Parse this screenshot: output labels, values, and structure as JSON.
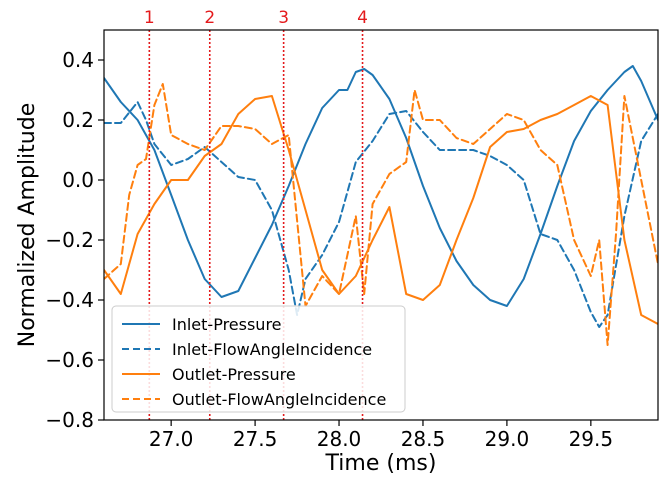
{
  "chart_data": {
    "type": "line",
    "title": "",
    "xlabel": "Time (ms)",
    "ylabel": "Normalized Amplitude",
    "xlim": [
      26.6,
      29.9
    ],
    "ylim": [
      -0.8,
      0.5
    ],
    "xticks": [
      27.0,
      27.5,
      28.0,
      28.5,
      29.0,
      29.5
    ],
    "xtick_labels": [
      "27.0",
      "27.5",
      "28.0",
      "28.5",
      "29.0",
      "29.5"
    ],
    "yticks": [
      -0.8,
      -0.6,
      -0.4,
      -0.2,
      0.0,
      0.2,
      0.4
    ],
    "ytick_labels": [
      "−0.8",
      "−0.6",
      "−0.4",
      "−0.2",
      "0.0",
      "0.2",
      "0.4"
    ],
    "grid": false,
    "legend_position": "bottom-left",
    "markers": [
      {
        "label": "1",
        "x": 26.87,
        "color": "#e41a1c"
      },
      {
        "label": "2",
        "x": 27.23,
        "color": "#e41a1c"
      },
      {
        "label": "3",
        "x": 27.67,
        "color": "#e41a1c"
      },
      {
        "label": "4",
        "x": 28.14,
        "color": "#e41a1c"
      }
    ],
    "series": [
      {
        "name": "Inlet-Pressure",
        "color": "#1f77b4",
        "dash": "solid",
        "x": [
          26.6,
          26.7,
          26.8,
          26.9,
          27.0,
          27.1,
          27.2,
          27.3,
          27.4,
          27.5,
          27.6,
          27.7,
          27.8,
          27.9,
          28.0,
          28.05,
          28.1,
          28.15,
          28.2,
          28.3,
          28.4,
          28.5,
          28.6,
          28.7,
          28.8,
          28.9,
          29.0,
          29.1,
          29.2,
          29.3,
          29.4,
          29.5,
          29.6,
          29.7,
          29.75,
          29.8,
          29.9
        ],
        "y": [
          0.34,
          0.26,
          0.2,
          0.1,
          -0.05,
          -0.2,
          -0.33,
          -0.39,
          -0.37,
          -0.26,
          -0.15,
          -0.02,
          0.12,
          0.24,
          0.3,
          0.3,
          0.36,
          0.37,
          0.35,
          0.27,
          0.14,
          -0.02,
          -0.16,
          -0.27,
          -0.35,
          -0.4,
          -0.42,
          -0.33,
          -0.18,
          -0.02,
          0.13,
          0.23,
          0.3,
          0.36,
          0.38,
          0.33,
          0.2
        ]
      },
      {
        "name": "Inlet-FlowAngleIncidence",
        "color": "#1f77b4",
        "dash": "dashed",
        "x": [
          26.6,
          26.7,
          26.8,
          26.85,
          26.9,
          27.0,
          27.1,
          27.2,
          27.3,
          27.4,
          27.5,
          27.55,
          27.6,
          27.7,
          27.75,
          27.8,
          27.9,
          28.0,
          28.1,
          28.2,
          28.3,
          28.4,
          28.5,
          28.6,
          28.7,
          28.8,
          28.9,
          29.0,
          29.1,
          29.2,
          29.3,
          29.4,
          29.5,
          29.55,
          29.6,
          29.7,
          29.8,
          29.9
        ],
        "y": [
          0.19,
          0.19,
          0.26,
          0.2,
          0.12,
          0.05,
          0.07,
          0.11,
          0.06,
          0.01,
          0.0,
          -0.05,
          -0.1,
          -0.3,
          -0.45,
          -0.33,
          -0.25,
          -0.14,
          0.06,
          0.13,
          0.22,
          0.23,
          0.16,
          0.1,
          0.1,
          0.1,
          0.08,
          0.05,
          0.0,
          -0.18,
          -0.2,
          -0.3,
          -0.44,
          -0.49,
          -0.45,
          -0.12,
          0.13,
          0.22
        ]
      },
      {
        "name": "Outlet-Pressure",
        "color": "#ff7f0e",
        "dash": "solid",
        "x": [
          26.6,
          26.7,
          26.8,
          26.9,
          27.0,
          27.1,
          27.2,
          27.3,
          27.4,
          27.5,
          27.6,
          27.7,
          27.8,
          27.9,
          28.0,
          28.1,
          28.2,
          28.3,
          28.4,
          28.5,
          28.6,
          28.7,
          28.8,
          28.9,
          29.0,
          29.1,
          29.2,
          29.3,
          29.4,
          29.5,
          29.6,
          29.7,
          29.8,
          29.9
        ],
        "y": [
          -0.3,
          -0.38,
          -0.18,
          -0.08,
          0.0,
          0.0,
          0.08,
          0.12,
          0.22,
          0.27,
          0.28,
          0.1,
          -0.1,
          -0.3,
          -0.38,
          -0.32,
          -0.2,
          -0.09,
          -0.38,
          -0.4,
          -0.35,
          -0.2,
          -0.06,
          0.11,
          0.16,
          0.17,
          0.2,
          0.22,
          0.25,
          0.28,
          0.25,
          -0.2,
          -0.45,
          -0.48
        ]
      },
      {
        "name": "Outlet-FlowAngleIncidence",
        "color": "#ff7f0e",
        "dash": "dashed",
        "x": [
          26.6,
          26.7,
          26.75,
          26.8,
          26.85,
          26.9,
          26.95,
          27.0,
          27.1,
          27.2,
          27.3,
          27.4,
          27.5,
          27.6,
          27.7,
          27.8,
          27.9,
          28.0,
          28.1,
          28.15,
          28.2,
          28.3,
          28.4,
          28.45,
          28.5,
          28.6,
          28.7,
          28.8,
          28.9,
          29.0,
          29.1,
          29.2,
          29.3,
          29.4,
          29.5,
          29.55,
          29.6,
          29.65,
          29.7,
          29.8,
          29.9
        ],
        "y": [
          -0.33,
          -0.28,
          -0.05,
          0.05,
          0.07,
          0.25,
          0.32,
          0.15,
          0.12,
          0.1,
          0.18,
          0.18,
          0.17,
          0.12,
          0.15,
          -0.42,
          -0.32,
          -0.38,
          -0.12,
          -0.38,
          -0.08,
          0.02,
          0.06,
          0.3,
          0.2,
          0.2,
          0.14,
          0.12,
          0.17,
          0.22,
          0.2,
          0.1,
          0.05,
          -0.2,
          -0.32,
          -0.2,
          -0.55,
          -0.18,
          0.28,
          0.0,
          -0.28
        ]
      }
    ]
  }
}
